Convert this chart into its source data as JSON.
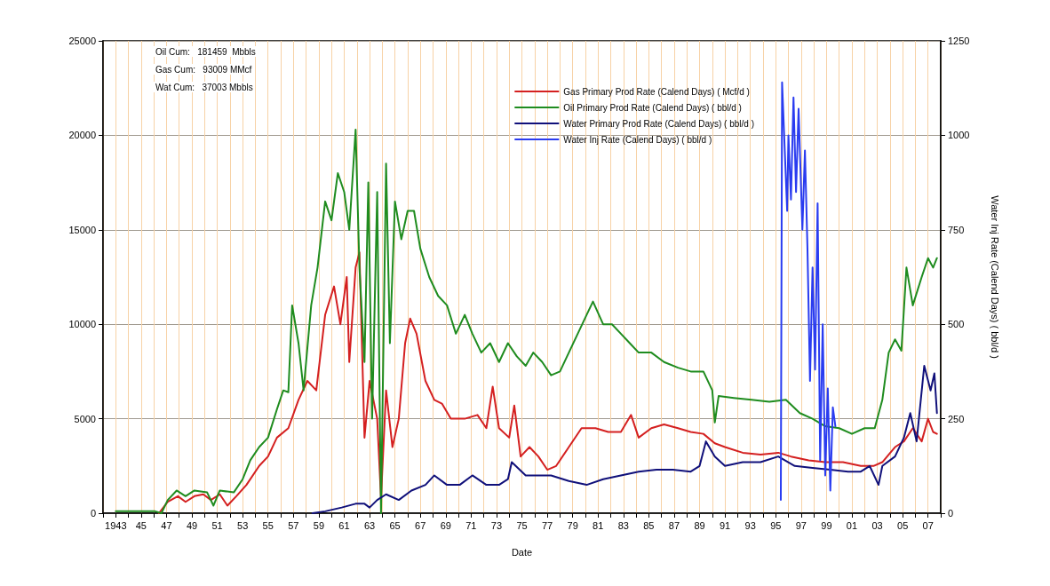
{
  "chart_data": {
    "type": "line",
    "xlabel": "Date",
    "y2label": "Water Inj Rate (Calend Days) ( bbl/d )",
    "annotations": [
      "Oil Cum:   181459  Mbbls",
      "Gas Cum:   93009 MMcf",
      "Wat Cum:   37003 Mbbls"
    ],
    "xlim": [
      1942,
      2008
    ],
    "xticks": [
      {
        "value": 1942,
        "label": null
      },
      {
        "value": 1943,
        "label": "1943"
      },
      {
        "value": 1944,
        "label": null
      },
      {
        "value": 1945,
        "label": "45"
      },
      {
        "value": 1946,
        "label": null
      },
      {
        "value": 1947,
        "label": "47"
      },
      {
        "value": 1948,
        "label": null
      },
      {
        "value": 1949,
        "label": "49"
      },
      {
        "value": 1950,
        "label": null
      },
      {
        "value": 1951,
        "label": "51"
      },
      {
        "value": 1952,
        "label": null
      },
      {
        "value": 1953,
        "label": "53"
      },
      {
        "value": 1954,
        "label": null
      },
      {
        "value": 1955,
        "label": "55"
      },
      {
        "value": 1956,
        "label": null
      },
      {
        "value": 1957,
        "label": "57"
      },
      {
        "value": 1958,
        "label": null
      },
      {
        "value": 1959,
        "label": "59"
      },
      {
        "value": 1960,
        "label": null
      },
      {
        "value": 1961,
        "label": "61"
      },
      {
        "value": 1962,
        "label": null
      },
      {
        "value": 1963,
        "label": "63"
      },
      {
        "value": 1964,
        "label": null
      },
      {
        "value": 1965,
        "label": "65"
      },
      {
        "value": 1966,
        "label": null
      },
      {
        "value": 1967,
        "label": "67"
      },
      {
        "value": 1968,
        "label": null
      },
      {
        "value": 1969,
        "label": "69"
      },
      {
        "value": 1970,
        "label": null
      },
      {
        "value": 1971,
        "label": "71"
      },
      {
        "value": 1972,
        "label": null
      },
      {
        "value": 1973,
        "label": "73"
      },
      {
        "value": 1974,
        "label": null
      },
      {
        "value": 1975,
        "label": "75"
      },
      {
        "value": 1976,
        "label": null
      },
      {
        "value": 1977,
        "label": "77"
      },
      {
        "value": 1978,
        "label": null
      },
      {
        "value": 1979,
        "label": "79"
      },
      {
        "value": 1980,
        "label": null
      },
      {
        "value": 1981,
        "label": "81"
      },
      {
        "value": 1982,
        "label": null
      },
      {
        "value": 1983,
        "label": "83"
      },
      {
        "value": 1984,
        "label": null
      },
      {
        "value": 1985,
        "label": "85"
      },
      {
        "value": 1986,
        "label": null
      },
      {
        "value": 1987,
        "label": "87"
      },
      {
        "value": 1988,
        "label": null
      },
      {
        "value": 1989,
        "label": "89"
      },
      {
        "value": 1990,
        "label": null
      },
      {
        "value": 1991,
        "label": "91"
      },
      {
        "value": 1992,
        "label": null
      },
      {
        "value": 1993,
        "label": "93"
      },
      {
        "value": 1994,
        "label": null
      },
      {
        "value": 1995,
        "label": "95"
      },
      {
        "value": 1996,
        "label": null
      },
      {
        "value": 1997,
        "label": "97"
      },
      {
        "value": 1998,
        "label": null
      },
      {
        "value": 1999,
        "label": "99"
      },
      {
        "value": 2000,
        "label": null
      },
      {
        "value": 2001,
        "label": "01"
      },
      {
        "value": 2002,
        "label": null
      },
      {
        "value": 2003,
        "label": "03"
      },
      {
        "value": 2004,
        "label": null
      },
      {
        "value": 2005,
        "label": "05"
      },
      {
        "value": 2006,
        "label": null
      },
      {
        "value": 2007,
        "label": "07"
      },
      {
        "value": 2008,
        "label": null
      }
    ],
    "ylim": [
      0,
      25000
    ],
    "yticks": [
      0,
      5000,
      10000,
      15000,
      20000,
      25000
    ],
    "y2lim": [
      0,
      1250
    ],
    "y2ticks": [
      0,
      250,
      500,
      750,
      1000,
      1250
    ],
    "grid": true,
    "legend": "top right",
    "marker": "none",
    "line_style": "solid",
    "series": [
      {
        "name": "Gas Primary Prod Rate (Calend Days) ( Mcf/d )",
        "color": "#d42020",
        "x": [
          1946.4,
          1947.1,
          1947.9,
          1948.5,
          1949.2,
          1949.9,
          1950.5,
          1951.2,
          1951.8,
          1952.5,
          1953.3,
          1954.3,
          1955,
          1955.7,
          1956.6,
          1957.4,
          1958.1,
          1958.8,
          1959.5,
          1960.2,
          1960.7,
          1961.2,
          1961.4,
          1961.9,
          1962.2,
          1962.6,
          1963,
          1963.6,
          1963.9,
          1964.3,
          1964.8,
          1965.3,
          1965.8,
          1966.2,
          1966.7,
          1967.4,
          1968.1,
          1968.7,
          1969.4,
          1970.5,
          1971.5,
          1972.2,
          1972.7,
          1973.2,
          1974,
          1974.4,
          1974.9,
          1975.6,
          1976.3,
          1977,
          1977.7,
          1978.7,
          1979.7,
          1980.8,
          1981.8,
          1982.8,
          1983.6,
          1984.2,
          1985.2,
          1986.2,
          1987.3,
          1988.3,
          1989.3,
          1990.2,
          1991,
          1992.4,
          1993.8,
          1995.2,
          1996.2,
          1997.6,
          1998.9,
          2000.3,
          2001.7,
          2002.7,
          2003.4,
          2004.4,
          2005.1,
          2005.8,
          2006.5,
          2007,
          2007.4,
          2007.7
        ],
        "values": [
          0,
          600,
          900,
          600,
          900,
          1000,
          700,
          1000,
          400,
          900,
          1500,
          2500,
          3000,
          4000,
          4500,
          6000,
          7000,
          6500,
          10500,
          12000,
          10000,
          12500,
          8000,
          13000,
          13800,
          4000,
          7000,
          5000,
          800,
          6500,
          3500,
          5000,
          9000,
          10300,
          9500,
          7000,
          6000,
          5800,
          5000,
          5000,
          5200,
          4500,
          6700,
          4500,
          4000,
          5700,
          3000,
          3500,
          3000,
          2300,
          2500,
          3500,
          4500,
          4500,
          4300,
          4300,
          5200,
          4000,
          4500,
          4700,
          4500,
          4300,
          4200,
          3700,
          3500,
          3200,
          3100,
          3200,
          3000,
          2800,
          2700,
          2700,
          2500,
          2500,
          2700,
          3500,
          3800,
          4500,
          3800,
          5000,
          4300,
          4200
        ]
      },
      {
        "name": "Oil Primary Prod Rate (Calend Days) ( bbl/d )",
        "color": "#1f8c1f",
        "x": [
          1943,
          1946.1,
          1946.6,
          1947.1,
          1947.8,
          1948.5,
          1949.2,
          1950.2,
          1950.7,
          1951.2,
          1952.3,
          1953,
          1953.6,
          1954.3,
          1955,
          1955.7,
          1956.2,
          1956.6,
          1956.9,
          1957.4,
          1957.8,
          1958.4,
          1958.9,
          1959.5,
          1960,
          1960.5,
          1961,
          1961.4,
          1961.9,
          1962.2,
          1962.6,
          1962.9,
          1963.2,
          1963.6,
          1963.9,
          1964.3,
          1964.6,
          1965,
          1965.5,
          1966,
          1966.5,
          1967,
          1967.7,
          1968.4,
          1969.1,
          1969.8,
          1970.5,
          1971.1,
          1971.8,
          1972.5,
          1973.2,
          1973.9,
          1974.6,
          1975.3,
          1975.9,
          1976.6,
          1977.3,
          1978,
          1978.7,
          1979.4,
          1980.1,
          1980.6,
          1981.4,
          1982.1,
          1982.8,
          1983.5,
          1984.2,
          1985.2,
          1986.2,
          1987.3,
          1988.3,
          1989.3,
          1990,
          1990.2,
          1990.5,
          1991.7,
          1993.1,
          1994.5,
          1995.8,
          1996.9,
          1997.9,
          1998.9,
          2000,
          2001,
          2002,
          2002.8,
          2003.4,
          2003.9,
          2004.4,
          2004.9,
          2005.3,
          2005.8,
          2006.5,
          2007,
          2007.4,
          2007.7
        ],
        "values": [
          100,
          100,
          0,
          700,
          1200,
          900,
          1200,
          1100,
          400,
          1200,
          1100,
          1800,
          2800,
          3500,
          4000,
          5500,
          6500,
          6400,
          11000,
          9000,
          6500,
          11000,
          13000,
          16500,
          15500,
          18000,
          17000,
          15000,
          20300,
          13000,
          8000,
          17500,
          5000,
          17000,
          0,
          18500,
          9000,
          16500,
          14500,
          16000,
          16000,
          14000,
          12500,
          11500,
          11000,
          9500,
          10500,
          9500,
          8500,
          9000,
          8000,
          9000,
          8300,
          7800,
          8500,
          8000,
          7300,
          7500,
          8500,
          9500,
          10500,
          11200,
          10000,
          10000,
          9500,
          9000,
          8500,
          8500,
          8000,
          7700,
          7500,
          7500,
          6500,
          4800,
          6200,
          6100,
          6000,
          5900,
          6000,
          5300,
          5000,
          4600,
          4500,
          4200,
          4500,
          4500,
          6000,
          8500,
          9200,
          8600,
          13000,
          11000,
          12500,
          13500,
          13000,
          13500
        ]
      },
      {
        "name": "Water Primary Prod Rate (Calend Days) ( bbl/d )",
        "color": "#10107a",
        "x": [
          1958.5,
          1959.5,
          1960.8,
          1961.9,
          1962.6,
          1963,
          1963.6,
          1964.3,
          1965.3,
          1966.3,
          1967.4,
          1968.1,
          1969.1,
          1970.1,
          1971.1,
          1972.2,
          1973.2,
          1973.9,
          1974.2,
          1975.3,
          1976.3,
          1977.3,
          1978.7,
          1980.1,
          1981.4,
          1982.8,
          1984.2,
          1985.6,
          1986.9,
          1988.3,
          1989,
          1989.5,
          1990.2,
          1991,
          1992.4,
          1993.8,
          1995.2,
          1996.5,
          1997.9,
          1999.3,
          2000.7,
          2001.7,
          2002.4,
          2003.1,
          2003.4,
          2004.4,
          2005.1,
          2005.6,
          2006.1,
          2006.7,
          2007.2,
          2007.5,
          2007.7
        ],
        "values": [
          0,
          100,
          300,
          500,
          500,
          300,
          700,
          1000,
          700,
          1200,
          1500,
          2000,
          1500,
          1500,
          2000,
          1500,
          1500,
          1800,
          2700,
          2000,
          2000,
          2000,
          1700,
          1500,
          1800,
          2000,
          2200,
          2300,
          2300,
          2200,
          2500,
          3800,
          3000,
          2500,
          2700,
          2700,
          3000,
          2500,
          2400,
          2300,
          2200,
          2200,
          2500,
          1500,
          2500,
          3000,
          4000,
          5300,
          3800,
          7800,
          6500,
          7400,
          5300
        ]
      },
      {
        "name": "Water Inj Rate (Calend Days) ( bbl/d )",
        "color": "#2a3cf0",
        "axis": "y2",
        "x": [
          1995.4,
          1995.5,
          1995.9,
          1996,
          1996.2,
          1996.4,
          1996.6,
          1996.8,
          1997.1,
          1997.3,
          1997.5,
          1997.7,
          1997.9,
          1998.1,
          1998.3,
          1998.5,
          1998.7,
          1998.9,
          1999.1,
          1999.3,
          1999.5,
          1999.7
        ],
        "values": [
          35,
          1140,
          800,
          1000,
          830,
          1100,
          850,
          1070,
          750,
          960,
          700,
          350,
          650,
          380,
          820,
          140,
          500,
          100,
          330,
          60,
          280,
          230
        ]
      }
    ]
  }
}
